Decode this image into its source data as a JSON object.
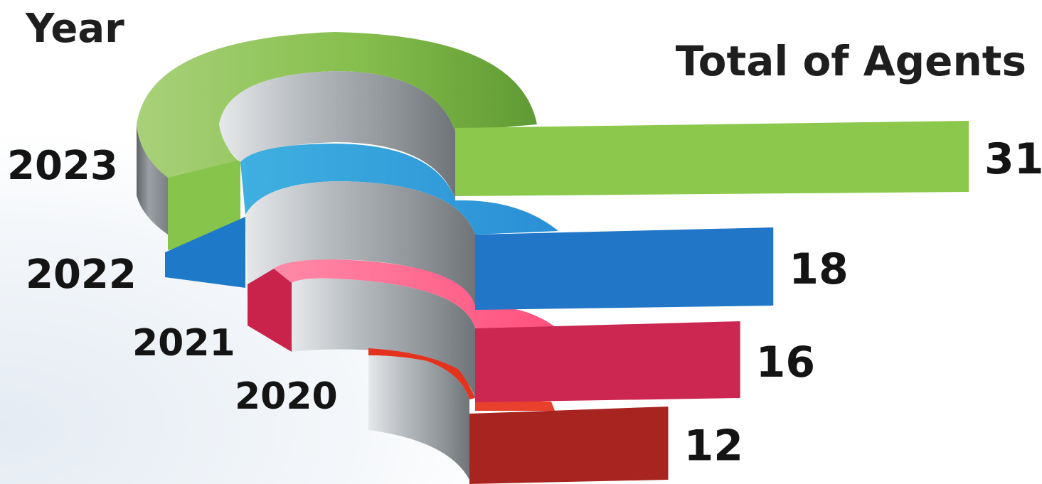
{
  "chart_data": {
    "type": "bar",
    "title": "",
    "xlabel": "Total of Agents",
    "ylabel": "Year",
    "categories": [
      "2023",
      "2022",
      "2021",
      "2020"
    ],
    "values": [
      31,
      18,
      16,
      12
    ],
    "colors": [
      "#8cc84b",
      "#2176c7",
      "#cc2750",
      "#a82420"
    ],
    "xlim": [
      0,
      31
    ],
    "grid": false,
    "legend": "none",
    "style": "3d spiral bars"
  },
  "labels": {
    "year_title": "Year",
    "agents_title": "Total of Agents"
  }
}
